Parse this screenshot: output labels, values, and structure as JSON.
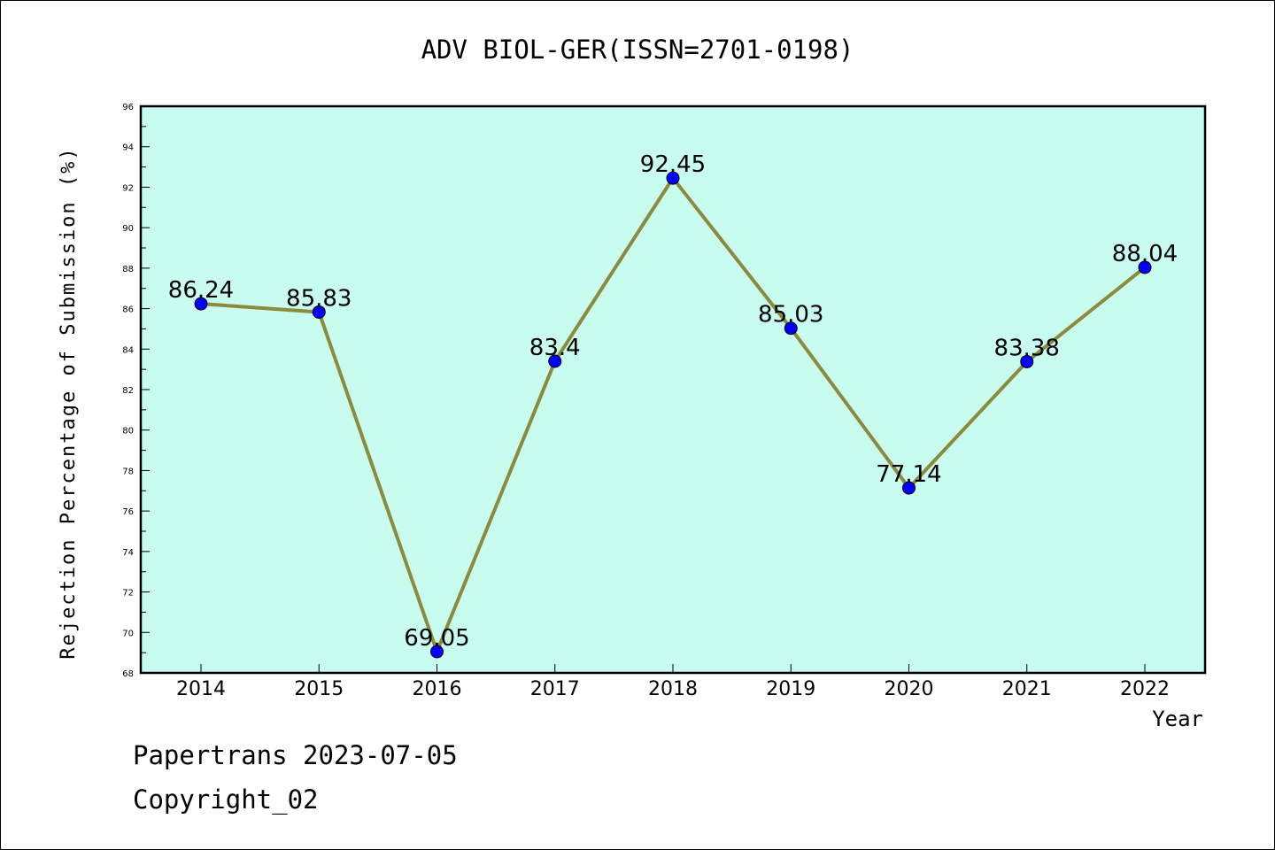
{
  "chart_data": {
    "type": "line",
    "title": "ADV BIOL-GER(ISSN=2701-0198)",
    "xlabel": "Year",
    "ylabel": "Rejection Percentage of Submission (%)",
    "categories": [
      "2014",
      "2015",
      "2016",
      "2017",
      "2018",
      "2019",
      "2020",
      "2021",
      "2022"
    ],
    "values": [
      86.24,
      85.83,
      69.05,
      83.4,
      92.45,
      85.03,
      77.14,
      83.38,
      88.04
    ],
    "data_labels": [
      "86.24",
      "85.83",
      "69.05",
      "83.4",
      "92.45",
      "85.03",
      "77.14",
      "83.38",
      "88.04"
    ],
    "ylim": [
      68,
      96
    ],
    "yticks": [
      68,
      70,
      72,
      74,
      76,
      78,
      80,
      82,
      84,
      86,
      88,
      90,
      92,
      94,
      96
    ],
    "grid": false,
    "colors": {
      "plot_background": "#c8fcee",
      "line": "#8c8a3c",
      "marker": "#0000ff"
    }
  },
  "footer": {
    "line1": "Papertrans 2023-07-05",
    "line2": "Copyright_02"
  }
}
